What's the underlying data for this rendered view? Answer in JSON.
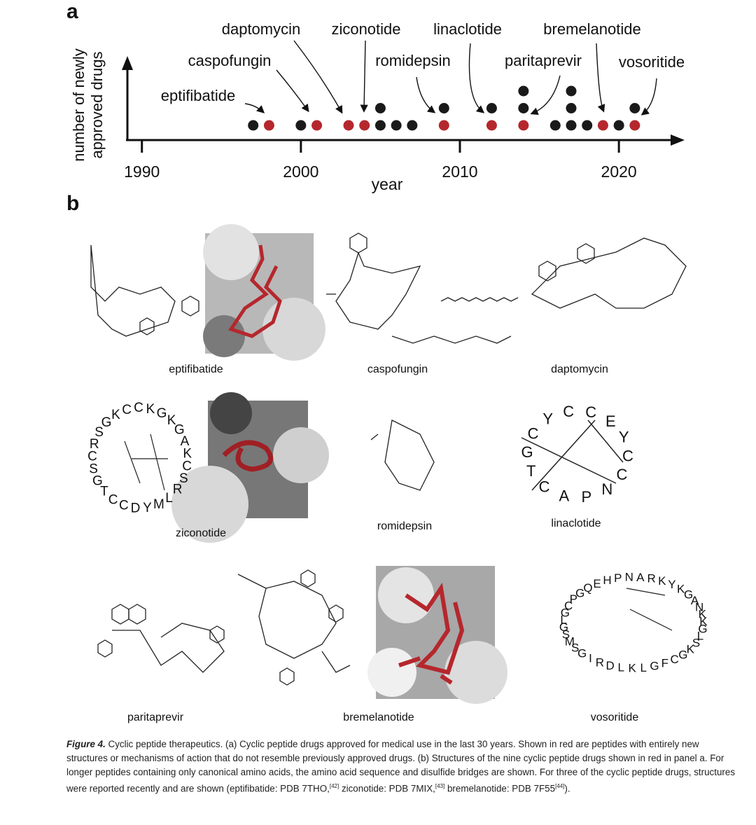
{
  "panel_a": {
    "label": "a",
    "chart_data": {
      "type": "dot",
      "x_label": "year",
      "y_label": [
        "number of newly",
        "approved drugs"
      ],
      "x": [
        1997,
        1998,
        2000,
        2001,
        2003,
        2004,
        2005,
        2006,
        2007,
        2009,
        2012,
        2014,
        2016,
        2017,
        2018,
        2019,
        2020,
        2021
      ],
      "series": [
        {
          "color": "#b5272d",
          "values": [
            0,
            1,
            0,
            1,
            1,
            1,
            0,
            0,
            0,
            1,
            1,
            1,
            0,
            0,
            0,
            1,
            0,
            1
          ]
        },
        {
          "color": "#1a1a1a",
          "values": [
            1,
            0,
            1,
            0,
            0,
            0,
            2,
            1,
            1,
            1,
            1,
            2,
            1,
            3,
            1,
            0,
            1,
            1
          ]
        }
      ],
      "xlim": [
        1989,
        2024
      ],
      "xticks": [
        1990,
        2000,
        2010,
        2020
      ],
      "annotations": [
        "eptifibatide",
        "caspofungin",
        "daptomycin",
        "ziconotide",
        "romidepsin",
        "linaclotide",
        "paritaprevir",
        "bremelanotide",
        "vosoritide"
      ]
    }
  },
  "panel_b": {
    "label": "b",
    "drugs": [
      "eptifibatide",
      "caspofungin",
      "daptomycin",
      "ziconotide",
      "romidepsin",
      "linaclotide",
      "paritaprevir",
      "bremelanotide",
      "vosoritide"
    ],
    "sequences": {
      "ziconotide": [
        "C",
        "K",
        "G",
        "K",
        "G",
        "A",
        "K",
        "C",
        "S",
        "R",
        "L",
        "M",
        "Y",
        "D",
        "C",
        "C",
        "T",
        "G",
        "S",
        "C",
        "R",
        "S",
        "G",
        "K",
        "C"
      ],
      "linaclotide": [
        "C",
        "C",
        "E",
        "Y",
        "C",
        "C",
        "N",
        "P",
        "A",
        "C",
        "T",
        "G",
        "C",
        "Y"
      ],
      "vosoritide": [
        "P",
        "G",
        "Q",
        "E",
        "H",
        "P",
        "N",
        "A",
        "R",
        "K",
        "Y",
        "K",
        "G",
        "A",
        "N",
        "K",
        "K",
        "G",
        "L",
        "S",
        "K",
        "G",
        "C",
        "F",
        "G",
        "L",
        "K",
        "L",
        "D",
        "R",
        "I",
        "G",
        "S",
        "M",
        "S",
        "G",
        "L",
        "G",
        "C"
      ]
    }
  },
  "caption": {
    "label": "Figure 4.",
    "segments": [
      "Cyclic peptide therapeutics. (a) Cyclic peptide drugs approved for medical use in the last 30 years. Shown in red are peptides with entirely new structures or mechanisms of action that do not resemble previously approved drugs. (b) Structures of the nine cyclic peptide drugs shown in red in panel a. For longer peptides containing only canonical amino acids, the amino acid sequence and disulfide bridges are shown. For three of the cyclic peptide drugs, structures were reported recently and are shown (eptifibatide: PDB 7THO,",
      " ziconotide: PDB 7MIX,",
      " bremelanotide: PDB 7F55",
      ")."
    ],
    "refs": [
      "[42]",
      "[43]",
      "[44]"
    ]
  }
}
